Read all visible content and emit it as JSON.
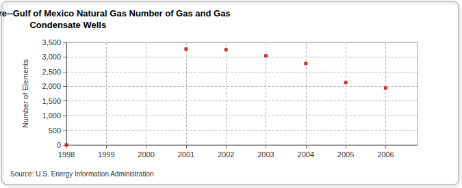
{
  "chart_data": {
    "type": "scatter",
    "title": "Annual Federal Offshore--Gulf of Mexico Natural Gas Number of Gas and Gas Condensate Wells",
    "y_label": "Number of Elements",
    "annotations": [
      "Source: U.S. Energy Information Administration"
    ],
    "x": [
      1998,
      2001,
      2002,
      2003,
      2004,
      2005,
      2006
    ],
    "values": [
      0,
      3270,
      3250,
      3040,
      2780,
      2130,
      1940
    ],
    "color": "#cc0000",
    "marker": "square",
    "xlim": [
      1998,
      2006.8
    ],
    "xticks": [
      1998,
      1999,
      2000,
      2001,
      2002,
      2003,
      2004,
      2005,
      2006
    ],
    "ylim": [
      0,
      3500
    ],
    "yticks": [
      0,
      500,
      {
        "value": 1000,
        "label": "1,000"
      },
      {
        "value": 1500,
        "label": "1,500"
      },
      {
        "value": 2000,
        "label": "2,000"
      },
      {
        "value": 2500,
        "label": "2,500"
      },
      {
        "value": 3000,
        "label": "3,000"
      },
      {
        "value": 3500,
        "label": "3,500"
      }
    ],
    "grid": true
  }
}
